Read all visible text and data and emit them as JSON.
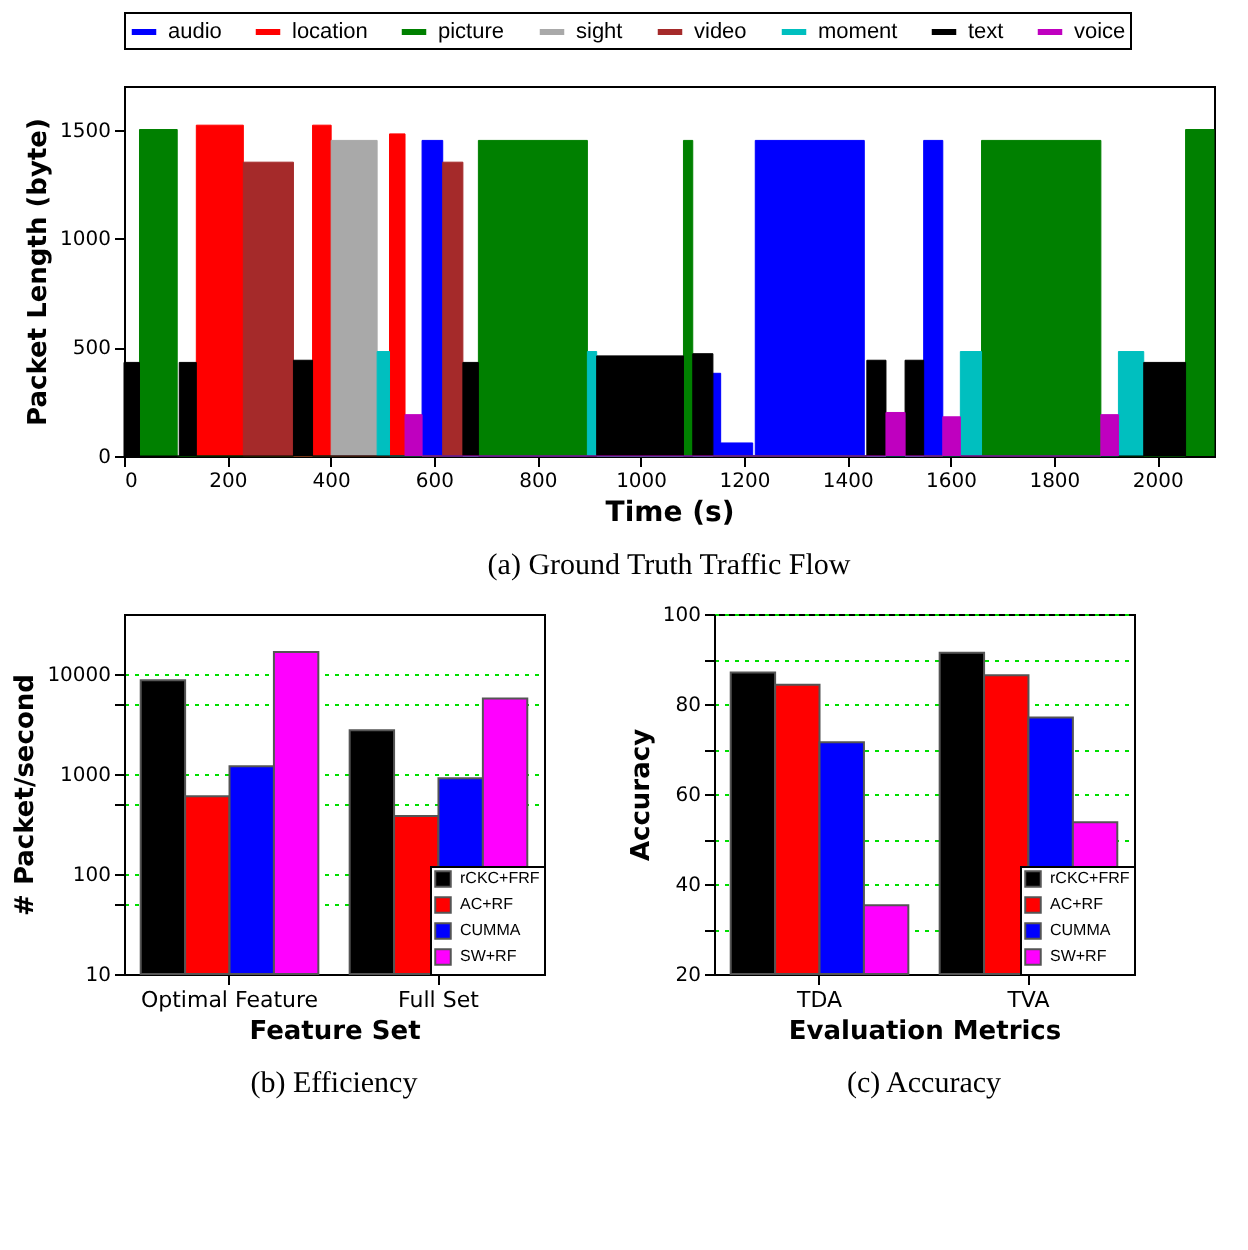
{
  "chart_data": [
    {
      "type": "area",
      "title": "(a) Ground Truth Traffic Flow",
      "xlabel": "Time (s)",
      "ylabel": "Packet Length (byte)",
      "xlim": [
        0,
        2110
      ],
      "ylim": [
        0,
        1700
      ],
      "xticks": [
        0,
        200,
        400,
        600,
        800,
        1000,
        1200,
        1400,
        1600,
        1800,
        2000
      ],
      "yticks": [
        0,
        500,
        1000,
        1500
      ],
      "legend": "top",
      "grid": false,
      "series": [
        {
          "name": "audio",
          "color": "#0000ff",
          "x": [
            577,
            577,
            617,
            617,
            1140,
            1140,
            1155,
            1155,
            1217,
            1217,
            1222,
            1222,
            1433,
            1433,
            1548,
            1548,
            1585,
            1585
          ],
          "values": [
            0,
            1450,
            1450,
            0,
            0,
            380,
            380,
            60,
            60,
            0,
            0,
            1450,
            1450,
            0,
            0,
            1450,
            1450,
            0
          ]
        },
        {
          "name": "location",
          "color": "#ff0000",
          "x": [
            140,
            140,
            231,
            231,
            365,
            365,
            401,
            401,
            514,
            514,
            544,
            544
          ],
          "values": [
            0,
            1520,
            1520,
            0,
            0,
            1520,
            1520,
            0,
            0,
            1480,
            1480,
            0
          ]
        },
        {
          "name": "picture",
          "color": "#008000",
          "x": [
            30,
            30,
            103,
            103,
            686,
            686,
            897,
            897,
            1083,
            1083,
            1101,
            1101,
            1660,
            1660,
            1891,
            1891,
            2055,
            2055,
            2110,
            2110
          ],
          "values": [
            0,
            1500,
            1500,
            0,
            0,
            1450,
            1450,
            0,
            0,
            1450,
            1450,
            0,
            0,
            1450,
            1450,
            0,
            0,
            1500,
            1500,
            0
          ]
        },
        {
          "name": "sight",
          "color": "#a9a9a9",
          "x": [
            401,
            401,
            490,
            490
          ],
          "values": [
            0,
            1450,
            1450,
            0
          ]
        },
        {
          "name": "video",
          "color": "#a52a2a",
          "x": [
            231,
            231,
            328,
            328,
            617,
            617,
            656,
            656
          ],
          "values": [
            0,
            1350,
            1350,
            0,
            0,
            1350,
            1350,
            0
          ]
        },
        {
          "name": "moment",
          "color": "#00bfbf",
          "x": [
            490,
            490,
            514,
            514,
            897,
            897,
            915,
            915,
            1619,
            1619,
            1660,
            1660,
            1925,
            1925,
            1974,
            1974
          ],
          "values": [
            0,
            480,
            480,
            0,
            0,
            480,
            480,
            0,
            0,
            480,
            480,
            0,
            0,
            480,
            480,
            0
          ]
        },
        {
          "name": "text",
          "color": "#000000",
          "x": [
            0,
            0,
            30,
            30,
            107,
            107,
            140,
            140,
            328,
            328,
            365,
            365,
            656,
            656,
            686,
            686,
            915,
            915,
            1083,
            1083,
            1101,
            1101,
            1140,
            1140,
            1438,
            1438,
            1475,
            1475,
            1512,
            1512,
            1548,
            1548,
            1974,
            1974,
            2055,
            2055
          ],
          "values": [
            0,
            430,
            430,
            0,
            0,
            430,
            430,
            0,
            0,
            440,
            440,
            0,
            0,
            430,
            430,
            0,
            0,
            460,
            460,
            0,
            0,
            470,
            470,
            0,
            0,
            440,
            440,
            0,
            0,
            440,
            440,
            0,
            0,
            430,
            430,
            0
          ]
        },
        {
          "name": "voice",
          "color": "#bf00bf",
          "x": [
            544,
            544,
            577,
            577,
            1475,
            1475,
            1512,
            1512,
            1585,
            1585,
            1619,
            1619,
            1891,
            1891,
            1925,
            1925
          ],
          "values": [
            0,
            190,
            190,
            0,
            0,
            200,
            200,
            0,
            0,
            180,
            180,
            0,
            0,
            190,
            190,
            0
          ]
        }
      ]
    },
    {
      "type": "bar",
      "title": "(b) Efficiency",
      "xlabel": "Feature Set",
      "ylabel": "# Packet/second",
      "categories": [
        "Optimal Feature",
        "Full Set"
      ],
      "log": true,
      "ylim": [
        10,
        40000
      ],
      "yticks": [
        10,
        {
          "value": 50,
          "label": null
        },
        100,
        {
          "value": 500,
          "label": null
        },
        1000,
        {
          "value": 5000,
          "label": null
        },
        10000
      ],
      "grid": "y",
      "legend": "bottom right",
      "series": [
        {
          "name": "rCKC+FRF",
          "color": "#000000",
          "values": [
            8700,
            2740
          ]
        },
        {
          "name": "AC+RF",
          "color": "#ff0000",
          "values": [
            600,
            380
          ]
        },
        {
          "name": "CUMMA",
          "color": "#0000ff",
          "values": [
            1200,
            910
          ]
        },
        {
          "name": "SW+RF",
          "color": "#ff00ff",
          "values": [
            16700,
            5700
          ]
        }
      ]
    },
    {
      "type": "bar",
      "title": "(c) Accuracy",
      "xlabel": "Evaluation Metrics",
      "ylabel": "Accuracy",
      "categories": [
        "TDA",
        "TVA"
      ],
      "ylim": [
        20,
        100
      ],
      "yticks": [
        20,
        {
          "value": 30,
          "label": null
        },
        40,
        {
          "value": 50,
          "label": null
        },
        60,
        {
          "value": 70,
          "label": null
        },
        80,
        {
          "value": 90,
          "label": null
        },
        100
      ],
      "grid": "y",
      "legend": "bottom right",
      "series": [
        {
          "name": "rCKC+FRF",
          "color": "#000000",
          "values": [
            87.0,
            91.4
          ]
        },
        {
          "name": "AC+RF",
          "color": "#ff0000",
          "values": [
            84.3,
            86.4
          ]
        },
        {
          "name": "CUMMA",
          "color": "#0000ff",
          "values": [
            71.5,
            77.0
          ]
        },
        {
          "name": "SW+RF",
          "color": "#ff00ff",
          "values": [
            35.3,
            53.7
          ]
        }
      ]
    }
  ]
}
